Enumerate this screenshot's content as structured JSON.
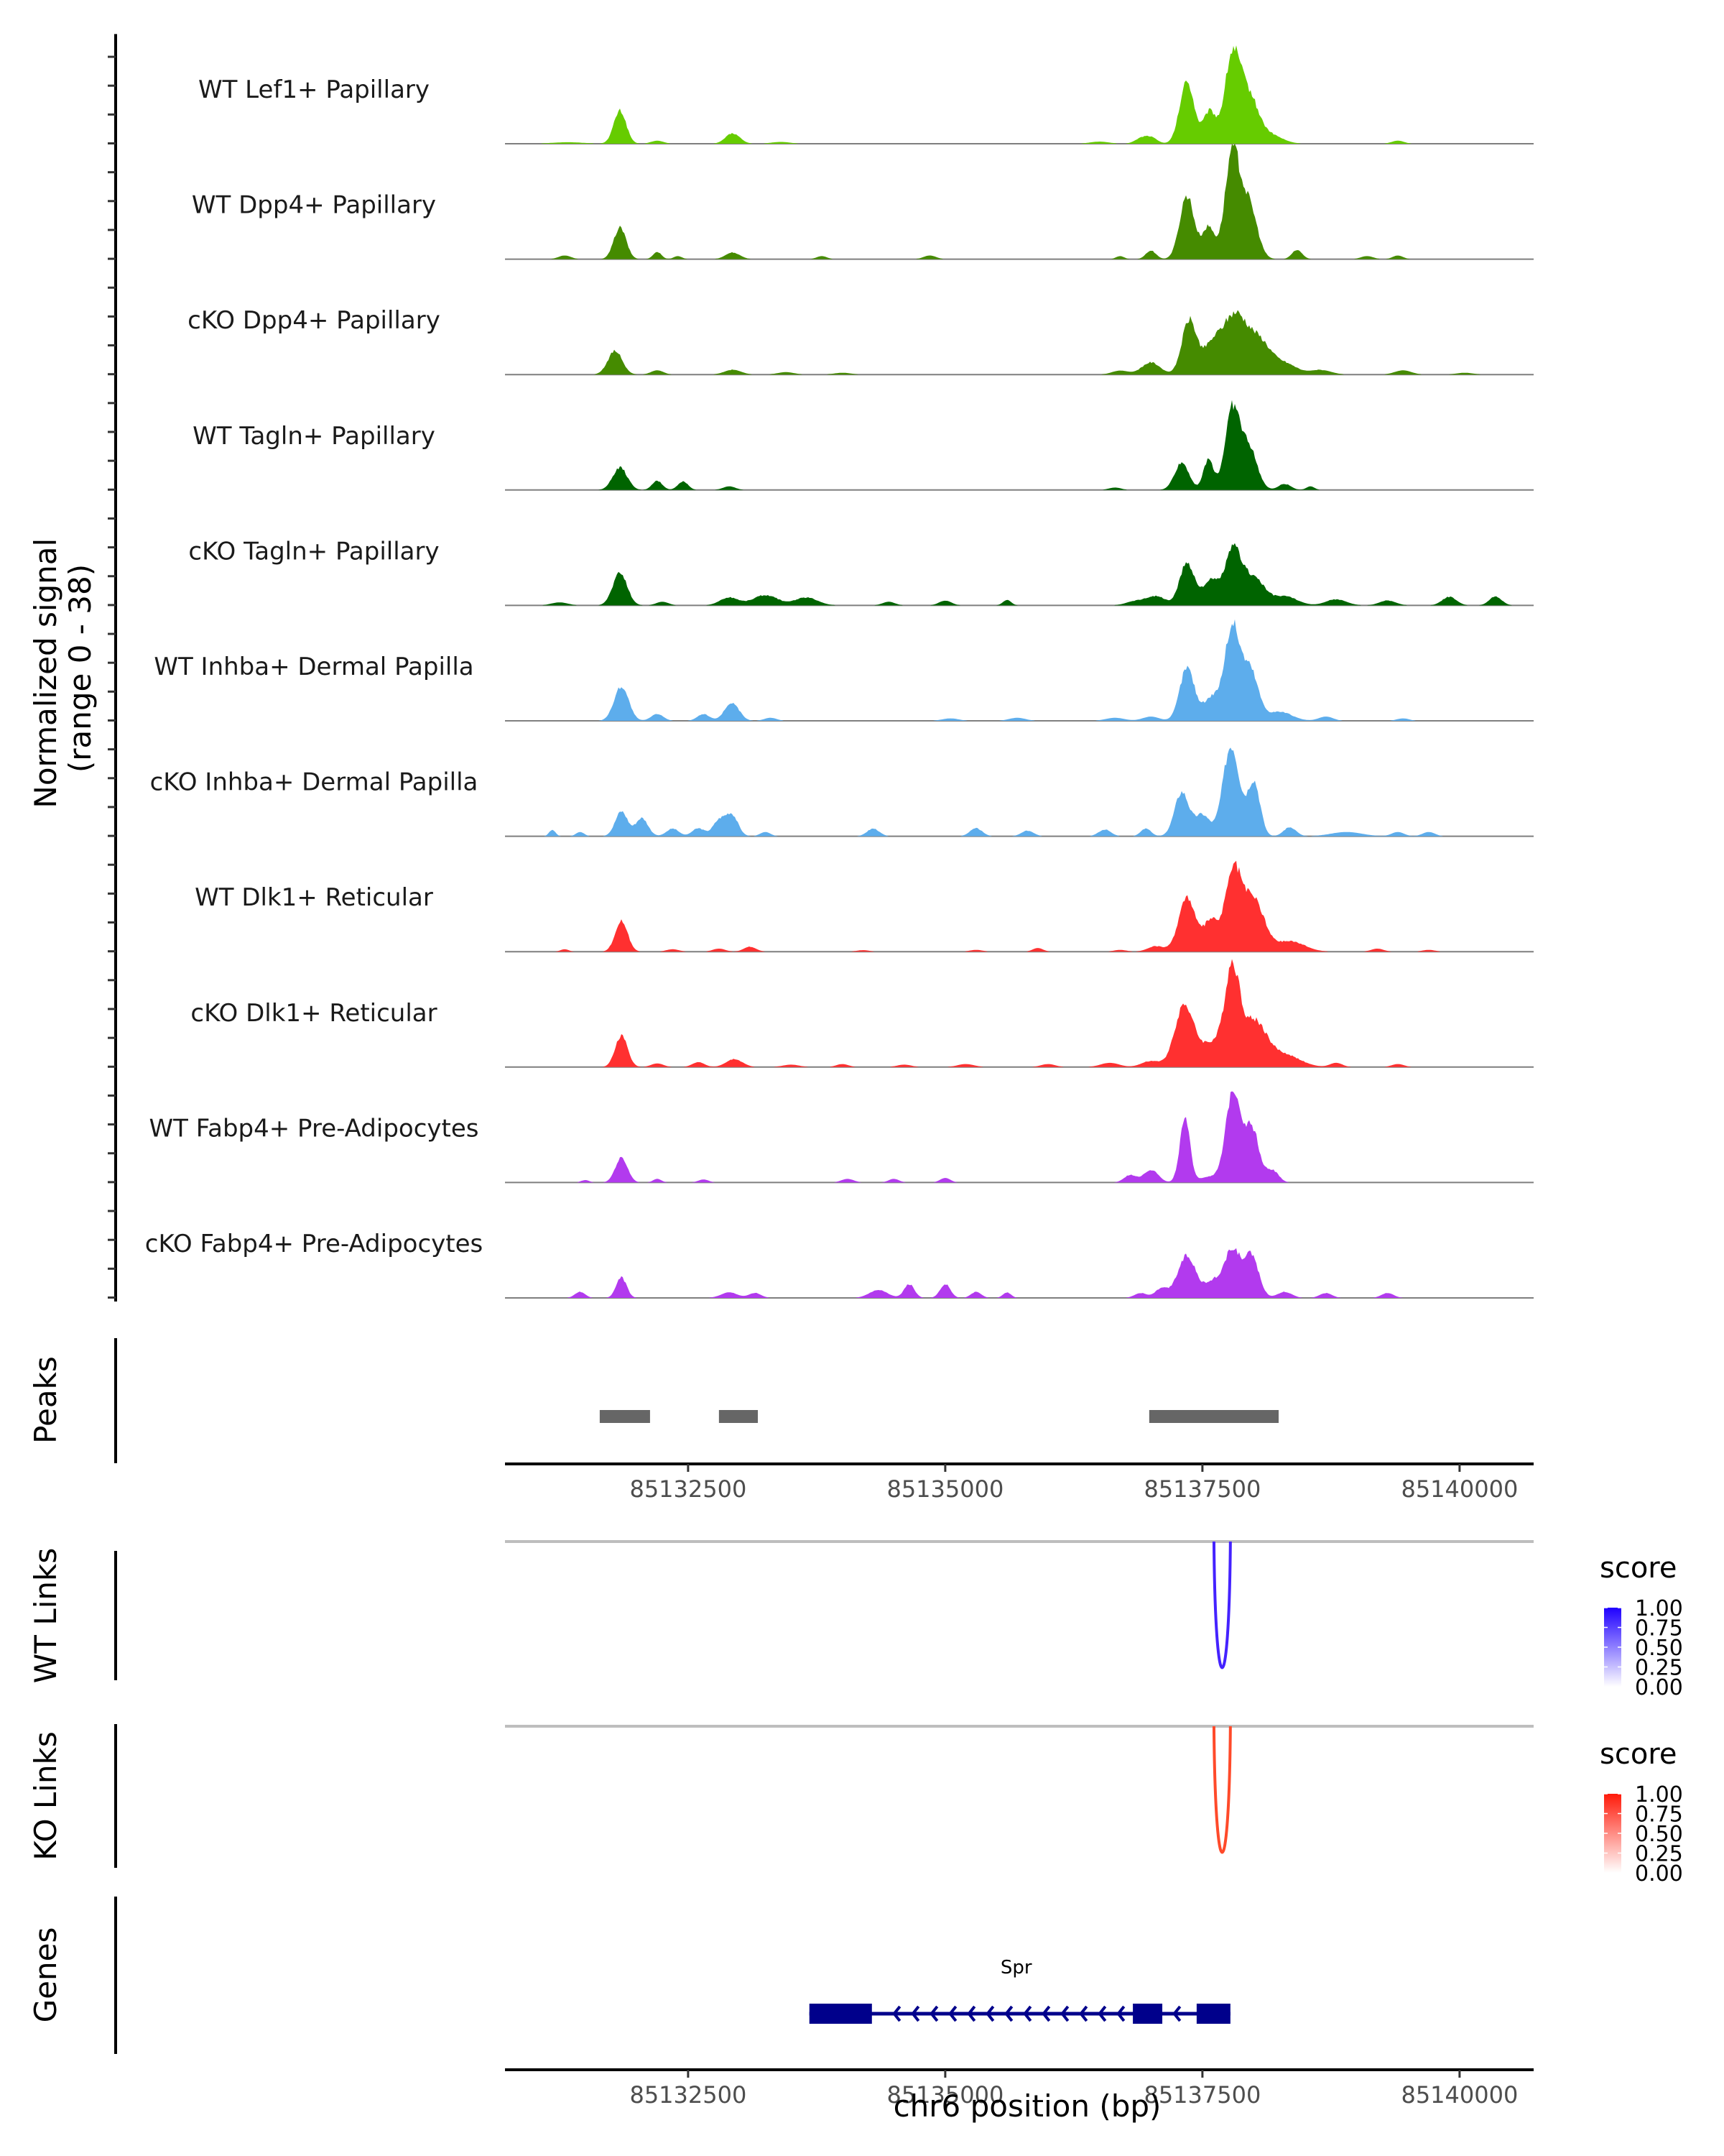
{
  "chart_data": {
    "type": "area",
    "title": "",
    "region": {
      "chromosome": "chr6",
      "start": 85130720,
      "end": 85140720
    },
    "xlabel": "chr6 position (bp)",
    "xticks": [
      85132500,
      85135000,
      85137500,
      85140000
    ],
    "coverage": {
      "ylabel": "Normalized signal\n(range 0 - 38)",
      "ylabel_line1": "Normalized signal",
      "ylabel_line2": "(range 0 - 38)",
      "ylim": [
        0,
        38
      ],
      "tracks": [
        {
          "name": "WT Lef1+ Papillary",
          "color": "#66CC00",
          "peaks": [
            [
              85131838,
              10.9,
              60
            ],
            [
              85132934,
              3.4,
              70
            ],
            [
              85131330,
              0.5,
              150
            ],
            [
              85132200,
              1.0,
              60
            ],
            [
              85133400,
              0.6,
              90
            ],
            [
              85136500,
              0.7,
              90
            ],
            [
              85136900,
              1.6,
              60
            ],
            [
              85137000,
              2.0,
              60
            ],
            [
              85137350,
              20.5,
              70
            ],
            [
              85137570,
              10.5,
              60
            ],
            [
              85137790,
              28.0,
              75
            ],
            [
              85137950,
              15.0,
              90
            ],
            [
              85138150,
              3.0,
              120
            ],
            [
              85139400,
              1.0,
              60
            ]
          ]
        },
        {
          "name": "WT Dpp4+ Papillary",
          "color": "#458B00",
          "peaks": [
            [
              85131838,
              10.4,
              60
            ],
            [
              85131300,
              1.2,
              60
            ],
            [
              85132200,
              2.4,
              40
            ],
            [
              85132400,
              1.0,
              40
            ],
            [
              85132934,
              2.2,
              70
            ],
            [
              85133800,
              1.0,
              50
            ],
            [
              85134850,
              1.2,
              60
            ],
            [
              85136700,
              1.0,
              40
            ],
            [
              85137000,
              2.8,
              50
            ],
            [
              85137350,
              21.0,
              70
            ],
            [
              85137560,
              10.5,
              60
            ],
            [
              85137790,
              34.5,
              70
            ],
            [
              85137950,
              18.0,
              80
            ],
            [
              85138420,
              3.0,
              50
            ],
            [
              85139100,
              1.0,
              60
            ],
            [
              85139400,
              1.2,
              50
            ]
          ]
        },
        {
          "name": "cKO Dpp4+ Papillary",
          "color": "#458B00",
          "peaks": [
            [
              85131790,
              7.8,
              70
            ],
            [
              85132200,
              1.4,
              60
            ],
            [
              85132934,
              1.6,
              80
            ],
            [
              85133450,
              0.8,
              80
            ],
            [
              85134000,
              0.6,
              80
            ],
            [
              85136700,
              1.3,
              80
            ],
            [
              85137000,
              4.0,
              90
            ],
            [
              85137370,
              17.5,
              70
            ],
            [
              85137600,
              9.5,
              100
            ],
            [
              85137820,
              18.5,
              110
            ],
            [
              85138050,
              10.5,
              110
            ],
            [
              85138300,
              3.5,
              120
            ],
            [
              85138650,
              1.5,
              100
            ],
            [
              85139450,
              1.4,
              80
            ],
            [
              85140050,
              0.6,
              80
            ]
          ]
        },
        {
          "name": "WT Tagln+ Papillary",
          "color": "#006400",
          "peaks": [
            [
              85131838,
              7.4,
              70
            ],
            [
              85132200,
              3.0,
              50
            ],
            [
              85132450,
              2.8,
              50
            ],
            [
              85132900,
              1.2,
              60
            ],
            [
              85136650,
              0.8,
              60
            ],
            [
              85137300,
              9.0,
              70
            ],
            [
              85137560,
              10.0,
              50
            ],
            [
              85137790,
              26.0,
              70
            ],
            [
              85137950,
              14.0,
              80
            ],
            [
              85138300,
              2.0,
              60
            ],
            [
              85138550,
              1.2,
              40
            ]
          ]
        },
        {
          "name": "cKO Tagln+ Papillary",
          "color": "#006400",
          "peaks": [
            [
              85131250,
              1.0,
              80
            ],
            [
              85131838,
              10.7,
              70
            ],
            [
              85132250,
              1.2,
              60
            ],
            [
              85132900,
              2.6,
              90
            ],
            [
              85133250,
              3.4,
              120
            ],
            [
              85133650,
              2.6,
              110
            ],
            [
              85134450,
              1.2,
              60
            ],
            [
              85135000,
              1.6,
              60
            ],
            [
              85135600,
              1.8,
              40
            ],
            [
              85136850,
              1.4,
              90
            ],
            [
              85137050,
              3.0,
              90
            ],
            [
              85137350,
              14.0,
              70
            ],
            [
              85137580,
              8.0,
              80
            ],
            [
              85137800,
              18.0,
              80
            ],
            [
              85138000,
              9.0,
              100
            ],
            [
              85138300,
              3.0,
              120
            ],
            [
              85138800,
              2.0,
              100
            ],
            [
              85139300,
              1.6,
              80
            ],
            [
              85139900,
              2.8,
              70
            ],
            [
              85140350,
              3.0,
              60
            ]
          ]
        },
        {
          "name": "WT Inhba+ Dermal Papilla",
          "color": "#5DADEC",
          "peaks": [
            [
              85131852,
              11.4,
              70
            ],
            [
              85132200,
              2.2,
              60
            ],
            [
              85132650,
              2.2,
              60
            ],
            [
              85132925,
              6.0,
              70
            ],
            [
              85133300,
              1.0,
              60
            ],
            [
              85135050,
              0.8,
              80
            ],
            [
              85135700,
              1.0,
              80
            ],
            [
              85136650,
              1.0,
              90
            ],
            [
              85137000,
              1.4,
              80
            ],
            [
              85137350,
              17.5,
              70
            ],
            [
              85137600,
              8.0,
              90
            ],
            [
              85137790,
              29.6,
              70
            ],
            [
              85137960,
              17.0,
              80
            ],
            [
              85138250,
              3.0,
              120
            ],
            [
              85138700,
              1.4,
              70
            ],
            [
              85139450,
              0.8,
              60
            ]
          ]
        },
        {
          "name": "cKO Inhba+ Dermal Papilla",
          "color": "#5DADEC",
          "peaks": [
            [
              85131180,
              2.2,
              30
            ],
            [
              85131450,
              1.4,
              40
            ],
            [
              85131852,
              8.2,
              60
            ],
            [
              85132050,
              6.0,
              60
            ],
            [
              85132350,
              2.5,
              60
            ],
            [
              85132600,
              2.6,
              60
            ],
            [
              85132800,
              5.0,
              60
            ],
            [
              85132925,
              7.0,
              60
            ],
            [
              85133250,
              1.4,
              50
            ],
            [
              85134300,
              2.5,
              60
            ],
            [
              85135300,
              2.6,
              60
            ],
            [
              85135800,
              1.8,
              60
            ],
            [
              85136550,
              2.2,
              60
            ],
            [
              85136950,
              2.5,
              50
            ],
            [
              85137300,
              14.5,
              70
            ],
            [
              85137500,
              7.0,
              70
            ],
            [
              85137780,
              30.0,
              80
            ],
            [
              85138000,
              18.0,
              60
            ],
            [
              85138350,
              3.0,
              60
            ],
            [
              85138900,
              1.4,
              150
            ],
            [
              85139400,
              1.4,
              60
            ],
            [
              85139700,
              1.4,
              60
            ]
          ]
        },
        {
          "name": "WT Dlk1+ Reticular",
          "color": "#FF3030",
          "peaks": [
            [
              85131300,
              0.8,
              40
            ],
            [
              85131852,
              10.2,
              60
            ],
            [
              85132350,
              0.8,
              60
            ],
            [
              85132800,
              1.0,
              60
            ],
            [
              85133100,
              1.6,
              60
            ],
            [
              85134200,
              0.5,
              60
            ],
            [
              85135300,
              0.6,
              60
            ],
            [
              85135900,
              1.2,
              50
            ],
            [
              85136700,
              0.6,
              60
            ],
            [
              85137050,
              1.8,
              80
            ],
            [
              85137350,
              18.0,
              80
            ],
            [
              85137580,
              10.0,
              70
            ],
            [
              85137800,
              26.0,
              80
            ],
            [
              85138000,
              17.0,
              100
            ],
            [
              85138350,
              3.5,
              140
            ],
            [
              85139200,
              1.0,
              60
            ],
            [
              85139700,
              0.6,
              60
            ]
          ]
        },
        {
          "name": "cKO Dlk1+ Reticular",
          "color": "#FF3030",
          "peaks": [
            [
              85131852,
              10.4,
              60
            ],
            [
              85132200,
              1.2,
              60
            ],
            [
              85132600,
              1.6,
              60
            ],
            [
              85132950,
              2.6,
              80
            ],
            [
              85133500,
              0.8,
              80
            ],
            [
              85134000,
              1.0,
              60
            ],
            [
              85134600,
              0.8,
              70
            ],
            [
              85135200,
              1.0,
              80
            ],
            [
              85136000,
              1.0,
              70
            ],
            [
              85136600,
              1.4,
              90
            ],
            [
              85137000,
              2.0,
              90
            ],
            [
              85137320,
              20.0,
              90
            ],
            [
              85137600,
              8.0,
              130
            ],
            [
              85137790,
              29.0,
              70
            ],
            [
              85138000,
              15.0,
              120
            ],
            [
              85138300,
              4.0,
              150
            ],
            [
              85138800,
              1.4,
              60
            ],
            [
              85139400,
              1.0,
              60
            ]
          ]
        },
        {
          "name": "WT Fabp4+ Pre-Adipocytes",
          "color": "#B23AEE",
          "peaks": [
            [
              85131500,
              0.8,
              40
            ],
            [
              85131852,
              8.0,
              60
            ],
            [
              85132200,
              1.2,
              40
            ],
            [
              85132650,
              1.0,
              50
            ],
            [
              85134050,
              1.2,
              60
            ],
            [
              85134500,
              1.2,
              50
            ],
            [
              85135000,
              1.5,
              50
            ],
            [
              85136800,
              2.5,
              60
            ],
            [
              85137000,
              4.2,
              70
            ],
            [
              85137330,
              20.5,
              50
            ],
            [
              85137580,
              2.0,
              100
            ],
            [
              85137800,
              30.5,
              70
            ],
            [
              85137980,
              18.0,
              70
            ],
            [
              85138180,
              4.0,
              60
            ]
          ]
        },
        {
          "name": "cKO Fabp4+ Pre-Adipocytes",
          "color": "#B23AEE",
          "peaks": [
            [
              85131450,
              2.0,
              50
            ],
            [
              85131852,
              6.7,
              50
            ],
            [
              85132900,
              1.8,
              80
            ],
            [
              85133150,
              1.6,
              60
            ],
            [
              85134350,
              2.5,
              90
            ],
            [
              85134650,
              4.5,
              50
            ],
            [
              85135000,
              4.6,
              50
            ],
            [
              85135300,
              2.0,
              50
            ],
            [
              85135600,
              1.8,
              40
            ],
            [
              85136900,
              1.6,
              60
            ],
            [
              85137100,
              3.0,
              60
            ],
            [
              85137350,
              14.0,
              90
            ],
            [
              85137600,
              5.0,
              70
            ],
            [
              85137790,
              16.0,
              80
            ],
            [
              85137980,
              13.5,
              70
            ],
            [
              85138300,
              2.0,
              70
            ],
            [
              85138700,
              1.6,
              60
            ],
            [
              85139300,
              1.6,
              60
            ]
          ]
        }
      ]
    },
    "peaks_track": {
      "label": "Peaks",
      "color": "#666666",
      "regions": [
        [
          85131641,
          85132130
        ],
        [
          85132800,
          85133178
        ],
        [
          85136983,
          85138241
        ]
      ]
    },
    "links": [
      {
        "label": "WT Links",
        "color": "#4422FF",
        "start": 85137612,
        "end": 85137772,
        "score_approx": 0.9,
        "legend": {
          "title": "score",
          "ticks": [
            "1.00",
            "0.75",
            "0.50",
            "0.25",
            "0.00"
          ],
          "low_color": "#FFFFFF",
          "high_color": "#1F00FF"
        }
      },
      {
        "label": "KO Links",
        "color": "#FF4A2A",
        "start": 85137612,
        "end": 85137772,
        "score_approx": 0.9,
        "legend": {
          "title": "score",
          "ticks": [
            "1.00",
            "0.75",
            "0.50",
            "0.25",
            "0.00"
          ],
          "low_color": "#FFFFFF",
          "high_color": "#FF1A0A"
        }
      }
    ],
    "genes": {
      "label": "Genes",
      "color": "#00008B",
      "items": [
        {
          "name": "Spr",
          "strand": "-",
          "start": 85133679,
          "end": 85137772,
          "exons": [
            [
              85133679,
              85134287
            ],
            [
              85136824,
              85137110
            ],
            [
              85137444,
              85137772
            ]
          ]
        }
      ]
    }
  }
}
